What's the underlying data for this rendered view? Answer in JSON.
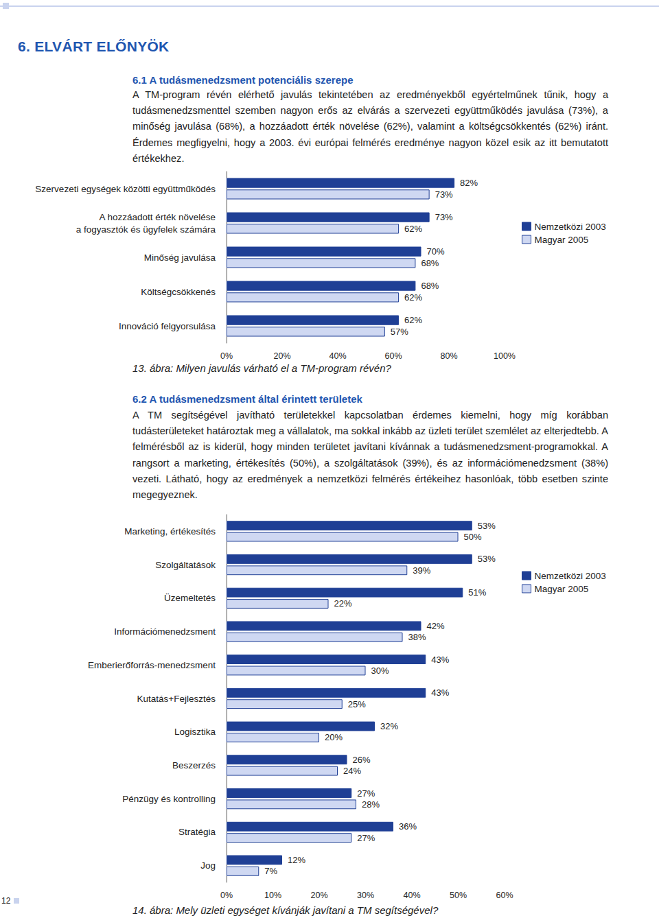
{
  "page": {
    "heading": "6. ELVÁRT ELŐNYÖK",
    "page_number": "12"
  },
  "sections": [
    {
      "title": "6.1 A tudásmenedzsment potenciális szerepe",
      "text": "A TM-program révén elérhető javulás tekintetében az eredményekből egyértelműnek tűnik, hogy a tudásmenedzsmenttel szemben nagyon erős az elvárás a szervezeti együttműködés javulása (73%), a minőség javulása (68%), a hozzáadott érték növelése (62%), valamint a költségcsökkentés (62%) iránt. Érdemes megfigyelni, hogy a 2003. évi európai felmérés eredménye nagyon közel esik az itt bemutatott értékekhez."
    },
    {
      "title": "6.2 A tudásmenedzsment által érintett területek",
      "text": "A TM segítségével javítható területekkel kapcsolatban érdemes kiemelni, hogy míg korábban tudásterületeket határoztak meg a vállalatok, ma sokkal inkább az üzleti terület szemlélet az elterjedtebb. A felmérésből az is kiderül, hogy minden területet javítani kívánnak a tudásmenedzsment-programokkal. A rangsort a marketing, értékesítés (50%), a szolgáltatások (39%), és az információmenedzsment (38%) vezeti. Látható, hogy az eredmények a nemzetközi felmérés értékeihez hasonlóak, több esetben szinte megegyeznek."
    }
  ],
  "chart_data": [
    {
      "type": "bar",
      "orientation": "horizontal",
      "title": "13. ábra: Milyen javulás várható el a TM-program révén?",
      "categories": [
        "Szervezeti egységek közötti együttműködés",
        "A hozzáadott érték növelése\na fogyasztók és ügyfelek számára",
        "Minőség javulása",
        "Költségcsökkenés",
        "Innováció felgyorsulása"
      ],
      "series": [
        {
          "name": "Nemzetközi 2003",
          "color": "#1f3f95",
          "values": [
            82,
            73,
            70,
            68,
            62
          ],
          "value_labels": [
            "82%",
            "73%",
            "70%",
            "68%",
            "62%"
          ]
        },
        {
          "name": "Magyar 2005",
          "color": "#cfd8f2",
          "values": [
            73,
            62,
            68,
            62,
            57
          ],
          "value_labels": [
            "73%",
            "62%",
            "68%",
            "62%",
            "57%"
          ]
        }
      ],
      "xlim": [
        0,
        100
      ],
      "xticks": [
        {
          "value": 0,
          "label": "0%"
        },
        {
          "value": 20,
          "label": "20%"
        },
        {
          "value": 40,
          "label": "40%"
        },
        {
          "value": 60,
          "label": "60%"
        },
        {
          "value": 80,
          "label": "80%"
        },
        {
          "value": 100,
          "label": "100%"
        }
      ],
      "grid": false,
      "legend": "right",
      "data_labels": true
    },
    {
      "type": "bar",
      "orientation": "horizontal",
      "title": "14. ábra: Mely üzleti egységet kívánják javítani a TM segítségével?",
      "categories": [
        "Marketing, értékesítés",
        "Szolgáltatások",
        "Üzemeltetés",
        "Információmenedzsment",
        "Emberierőforrás-menedzsment",
        "Kutatás+Fejlesztés",
        "Logisztika",
        "Beszerzés",
        "Pénzügy és kontrolling",
        "Stratégia",
        "Jog"
      ],
      "series": [
        {
          "name": "Nemzetközi 2003",
          "color": "#1f3f95",
          "values": [
            53,
            53,
            51,
            42,
            43,
            43,
            32,
            26,
            27,
            36,
            12
          ],
          "value_labels": [
            "53%",
            "53%",
            "51%",
            "42%",
            "43%",
            "43%",
            "32%",
            "26%",
            "27%",
            "36%",
            "12%"
          ]
        },
        {
          "name": "Magyar 2005",
          "color": "#cfd8f2",
          "values": [
            50,
            39,
            22,
            38,
            30,
            25,
            20,
            24,
            28,
            27,
            7
          ],
          "value_labels": [
            "50%",
            "39%",
            "22%",
            "38%",
            "30%",
            "25%",
            "20%",
            "24%",
            "28%",
            "27%",
            "7%"
          ]
        }
      ],
      "xlim": [
        0,
        60
      ],
      "xticks": [
        {
          "value": 0,
          "label": "0%"
        },
        {
          "value": 10,
          "label": "10%"
        },
        {
          "value": 20,
          "label": "20%"
        },
        {
          "value": 30,
          "label": "30%"
        },
        {
          "value": 40,
          "label": "40%"
        },
        {
          "value": 50,
          "label": "50%"
        },
        {
          "value": 60,
          "label": "60%"
        }
      ],
      "grid": false,
      "legend": "right",
      "data_labels": true
    }
  ]
}
